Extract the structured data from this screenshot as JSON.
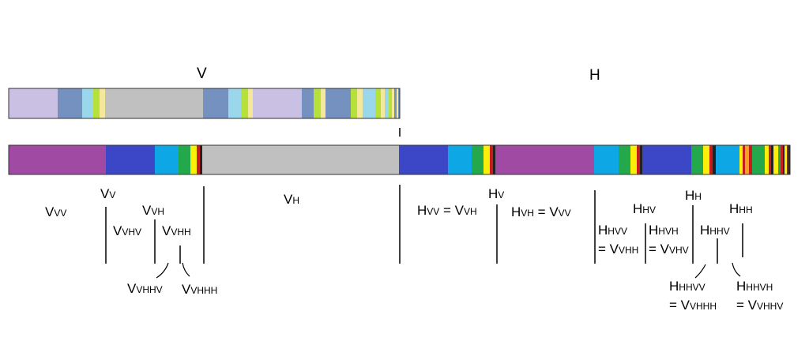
{
  "top_labels": {
    "v": "V",
    "h": "H"
  },
  "colors": {
    "lavender": "#c9c0e4",
    "steel": "#7491bf",
    "skyLight": "#9ad7ea",
    "limeLight": "#b6e03a",
    "yellowPale": "#f4e99a",
    "silver": "#c0c0c0",
    "purple": "#a04aa3",
    "blue": "#3b47c7",
    "sky": "#0ea7e6",
    "green": "#23a94c",
    "yellow": "#f9ef0b",
    "red": "#c81b1b",
    "orange": "#f4a124",
    "dark": "#222222",
    "brown": "#7a3a0a"
  },
  "labels": [
    {
      "id": "vvv",
      "main": "V",
      "sub": "VV"
    },
    {
      "id": "vv",
      "main": "V",
      "sub": "V"
    },
    {
      "id": "vvh",
      "main": "V",
      "sub": "VH"
    },
    {
      "id": "vvhv",
      "main": "V",
      "sub": "VHV"
    },
    {
      "id": "vvhh",
      "main": "V",
      "sub": "VHH"
    },
    {
      "id": "vvhhv",
      "main": "V",
      "sub": "VHHV"
    },
    {
      "id": "vvhhh",
      "main": "V",
      "sub": "VHHH"
    },
    {
      "id": "vh",
      "main": "V",
      "sub": "H"
    },
    {
      "id": "hvv",
      "main": "H",
      "sub": "VV",
      "eq": " = V",
      "eqsub": "VH"
    },
    {
      "id": "hv",
      "main": "H",
      "sub": "V"
    },
    {
      "id": "hvh",
      "main": "H",
      "sub": "VH",
      "eq": " = V",
      "eqsub": "VV"
    },
    {
      "id": "hhv",
      "main": "H",
      "sub": "HV"
    },
    {
      "id": "hh",
      "main": "H",
      "sub": "H"
    },
    {
      "id": "hhh",
      "main": "H",
      "sub": "HH"
    },
    {
      "id": "hhvv",
      "main": "H",
      "sub": "HVV"
    },
    {
      "id": "hhvv_eq",
      "main": "= V",
      "sub": "VHH"
    },
    {
      "id": "hhvh",
      "main": "H",
      "sub": "HVH"
    },
    {
      "id": "hhvh_eq",
      "main": "= V",
      "sub": "VHV"
    },
    {
      "id": "hhhv",
      "main": "H",
      "sub": "HHV"
    },
    {
      "id": "hhhvv",
      "main": "H",
      "sub": "HHVV"
    },
    {
      "id": "hhhvv_eq",
      "main": "= V",
      "sub": "VHHH"
    },
    {
      "id": "hhhvh",
      "main": "H",
      "sub": "HHVH"
    },
    {
      "id": "hhhvh_eq",
      "main": "= V",
      "sub": "VHHV"
    }
  ]
}
